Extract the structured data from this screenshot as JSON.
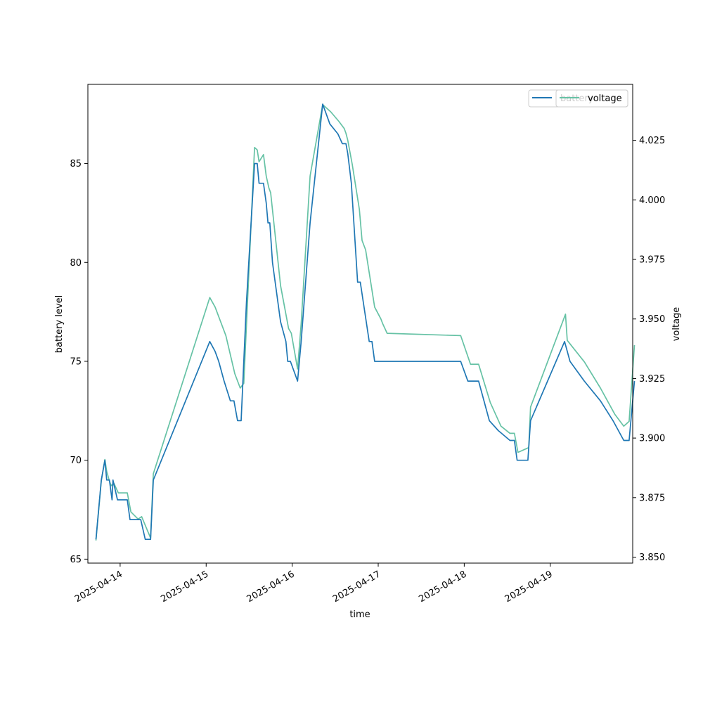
{
  "chart_data": {
    "type": "line",
    "xlabel": "time",
    "ylabel_left": "battery level",
    "ylabel_right": "voltage",
    "x_axis": "date",
    "xlim": [
      "2025-04-13 15:00",
      "2025-04-19 23:00"
    ],
    "ylim_left": [
      64.8,
      89.0
    ],
    "ylim_right": [
      3.8475,
      4.0485
    ],
    "x_ticks": [
      "2025-04-14",
      "2025-04-15",
      "2025-04-16",
      "2025-04-17",
      "2025-04-18",
      "2025-04-19"
    ],
    "y_ticks_left": [
      65,
      70,
      75,
      80,
      85
    ],
    "y_ticks_right": [
      "3.850",
      "3.875",
      "3.900",
      "3.925",
      "3.950",
      "3.975",
      "4.000",
      "4.025"
    ],
    "grid": false,
    "colors": {
      "battery": "#1f77b4",
      "voltage": "#66c2a5",
      "axis": "#000000"
    },
    "series": [
      {
        "name": "battery",
        "axis": "left",
        "points": [
          [
            "2025-04-13 17:15",
            66
          ],
          [
            "2025-04-13 18:45",
            69
          ],
          [
            "2025-04-13 19:45",
            70
          ],
          [
            "2025-04-13 20:15",
            69
          ],
          [
            "2025-04-13 21:00",
            69
          ],
          [
            "2025-04-13 21:45",
            68
          ],
          [
            "2025-04-13 22:00",
            69
          ],
          [
            "2025-04-13 23:15",
            68
          ],
          [
            "2025-04-14 02:00",
            68
          ],
          [
            "2025-04-14 02:45",
            67
          ],
          [
            "2025-04-14 05:45",
            67
          ],
          [
            "2025-04-14 07:00",
            66
          ],
          [
            "2025-04-14 08:30",
            66
          ],
          [
            "2025-04-14 09:15",
            69
          ],
          [
            "2025-04-15 01:00",
            76
          ],
          [
            "2025-04-15 02:30",
            75.5
          ],
          [
            "2025-04-15 03:30",
            75
          ],
          [
            "2025-04-15 05:00",
            74
          ],
          [
            "2025-04-15 06:45",
            73
          ],
          [
            "2025-04-15 07:45",
            73
          ],
          [
            "2025-04-15 08:45",
            72
          ],
          [
            "2025-04-15 09:45",
            72
          ],
          [
            "2025-04-15 11:15",
            78
          ],
          [
            "2025-04-15 13:30",
            85
          ],
          [
            "2025-04-15 14:15",
            85
          ],
          [
            "2025-04-15 14:45",
            84
          ],
          [
            "2025-04-15 16:00",
            84
          ],
          [
            "2025-04-15 16:45",
            83
          ],
          [
            "2025-04-15 17:15",
            82
          ],
          [
            "2025-04-15 17:45",
            82
          ],
          [
            "2025-04-15 18:30",
            80
          ],
          [
            "2025-04-15 20:45",
            77
          ],
          [
            "2025-04-15 22:15",
            76
          ],
          [
            "2025-04-15 22:45",
            75
          ],
          [
            "2025-04-15 23:30",
            75
          ],
          [
            "2025-04-16 01:30",
            74
          ],
          [
            "2025-04-16 02:30",
            76
          ],
          [
            "2025-04-16 05:00",
            82
          ],
          [
            "2025-04-16 08:30",
            88
          ],
          [
            "2025-04-16 10:30",
            87
          ],
          [
            "2025-04-16 12:45",
            86.5
          ],
          [
            "2025-04-16 14:00",
            86
          ],
          [
            "2025-04-16 15:00",
            86
          ],
          [
            "2025-04-16 15:30",
            85.5
          ],
          [
            "2025-04-16 16:30",
            84
          ],
          [
            "2025-04-16 18:15",
            79
          ],
          [
            "2025-04-16 19:00",
            79
          ],
          [
            "2025-04-16 21:30",
            76
          ],
          [
            "2025-04-16 22:15",
            76
          ],
          [
            "2025-04-16 23:00",
            75
          ],
          [
            "2025-04-17 23:00",
            75
          ],
          [
            "2025-04-18 01:00",
            74
          ],
          [
            "2025-04-18 04:00",
            74
          ],
          [
            "2025-04-18 07:00",
            72
          ],
          [
            "2025-04-18 09:30",
            71.5
          ],
          [
            "2025-04-18 12:45",
            71
          ],
          [
            "2025-04-18 14:00",
            71
          ],
          [
            "2025-04-18 14:45",
            70
          ],
          [
            "2025-04-18 17:45",
            70
          ],
          [
            "2025-04-18 18:30",
            72
          ],
          [
            "2025-04-19 04:00",
            76
          ],
          [
            "2025-04-19 05:30",
            75
          ],
          [
            "2025-04-19 09:30",
            74
          ],
          [
            "2025-04-19 14:00",
            73
          ],
          [
            "2025-04-19 17:30",
            72
          ],
          [
            "2025-04-19 20:30",
            71
          ],
          [
            "2025-04-19 22:00",
            71
          ],
          [
            "2025-04-19 23:30",
            74
          ]
        ]
      },
      {
        "name": "voltage",
        "axis": "right",
        "points": [
          [
            "2025-04-13 17:15",
            3.857
          ],
          [
            "2025-04-13 18:45",
            3.882
          ],
          [
            "2025-04-13 19:45",
            3.891
          ],
          [
            "2025-04-13 20:15",
            3.886
          ],
          [
            "2025-04-13 21:00",
            3.882
          ],
          [
            "2025-04-13 21:30",
            3.88
          ],
          [
            "2025-04-13 22:15",
            3.881
          ],
          [
            "2025-04-13 23:30",
            3.877
          ],
          [
            "2025-04-14 02:00",
            3.877
          ],
          [
            "2025-04-14 03:00",
            3.869
          ],
          [
            "2025-04-14 05:00",
            3.866
          ],
          [
            "2025-04-14 06:00",
            3.867
          ],
          [
            "2025-04-14 08:30",
            3.858
          ],
          [
            "2025-04-14 09:15",
            3.885
          ],
          [
            "2025-04-15 01:00",
            3.959
          ],
          [
            "2025-04-15 02:30",
            3.955
          ],
          [
            "2025-04-15 05:30",
            3.943
          ],
          [
            "2025-04-15 08:00",
            3.927
          ],
          [
            "2025-04-15 09:30",
            3.921
          ],
          [
            "2025-04-15 10:30",
            3.923
          ],
          [
            "2025-04-15 12:00",
            3.972
          ],
          [
            "2025-04-15 13:30",
            4.022
          ],
          [
            "2025-04-15 14:15",
            4.021
          ],
          [
            "2025-04-15 14:45",
            4.016
          ],
          [
            "2025-04-15 16:00",
            4.019
          ],
          [
            "2025-04-15 16:45",
            4.01
          ],
          [
            "2025-04-15 17:30",
            4.005
          ],
          [
            "2025-04-15 18:00",
            4.003
          ],
          [
            "2025-04-15 20:45",
            3.964
          ],
          [
            "2025-04-15 23:00",
            3.946
          ],
          [
            "2025-04-15 23:45",
            3.944
          ],
          [
            "2025-04-16 01:30",
            3.929
          ],
          [
            "2025-04-16 02:30",
            3.948
          ],
          [
            "2025-04-16 05:00",
            4.01
          ],
          [
            "2025-04-16 08:30",
            4.04
          ],
          [
            "2025-04-16 10:45",
            4.037
          ],
          [
            "2025-04-16 13:00",
            4.033
          ],
          [
            "2025-04-16 14:30",
            4.03
          ],
          [
            "2025-04-16 15:00",
            4.028
          ],
          [
            "2025-04-16 15:30",
            4.025
          ],
          [
            "2025-04-16 16:45",
            4.015
          ],
          [
            "2025-04-16 18:45",
            3.996
          ],
          [
            "2025-04-16 19:30",
            3.983
          ],
          [
            "2025-04-16 20:30",
            3.979
          ],
          [
            "2025-04-16 23:00",
            3.955
          ],
          [
            "2025-04-17 00:45",
            3.95
          ],
          [
            "2025-04-17 01:15",
            3.948
          ],
          [
            "2025-04-17 02:30",
            3.944
          ],
          [
            "2025-04-17 23:00",
            3.943
          ],
          [
            "2025-04-18 01:45",
            3.931
          ],
          [
            "2025-04-18 04:00",
            3.931
          ],
          [
            "2025-04-18 07:15",
            3.915
          ],
          [
            "2025-04-18 10:15",
            3.905
          ],
          [
            "2025-04-18 12:45",
            3.902
          ],
          [
            "2025-04-18 14:00",
            3.902
          ],
          [
            "2025-04-18 15:00",
            3.894
          ],
          [
            "2025-04-18 18:00",
            3.896
          ],
          [
            "2025-04-18 18:30",
            3.913
          ],
          [
            "2025-04-19 04:15",
            3.952
          ],
          [
            "2025-04-19 04:45",
            3.941
          ],
          [
            "2025-04-19 09:30",
            3.932
          ],
          [
            "2025-04-19 14:00",
            3.921
          ],
          [
            "2025-04-19 18:00",
            3.91
          ],
          [
            "2025-04-19 20:30",
            3.905
          ],
          [
            "2025-04-19 22:00",
            3.907
          ],
          [
            "2025-04-19 23:30",
            3.939
          ]
        ]
      }
    ],
    "legends": [
      {
        "location": "upper right",
        "entries": [
          {
            "label": "battery",
            "series": "battery"
          }
        ]
      },
      {
        "location": "upper right",
        "entries": [
          {
            "label": "voltage",
            "series": "voltage"
          }
        ]
      }
    ]
  }
}
